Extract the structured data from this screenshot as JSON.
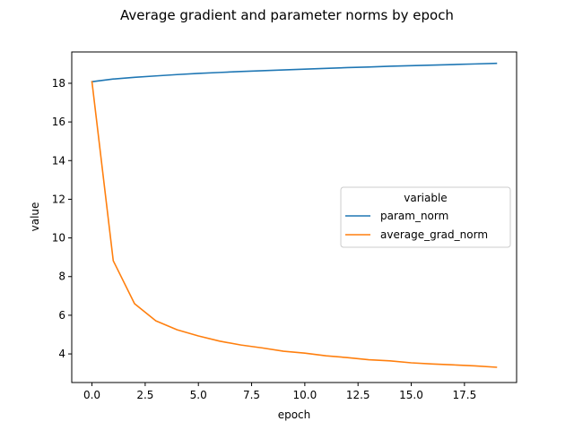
{
  "chart_data": {
    "type": "line",
    "title": "Average gradient and parameter norms by epoch",
    "xlabel": "epoch",
    "ylabel": "value",
    "xlim": [
      -0.95,
      19.95
    ],
    "ylim": [
      2.52,
      19.62
    ],
    "xticks": [
      0.0,
      2.5,
      5.0,
      7.5,
      10.0,
      12.5,
      15.0,
      17.5
    ],
    "xtick_labels": [
      "0.0",
      "2.5",
      "5.0",
      "7.5",
      "10.0",
      "12.5",
      "15.0",
      "17.5"
    ],
    "yticks": [
      4,
      6,
      8,
      10,
      12,
      14,
      16,
      18
    ],
    "ytick_labels": [
      "4",
      "6",
      "8",
      "10",
      "12",
      "14",
      "16",
      "18"
    ],
    "grid": false,
    "legend": {
      "title": "variable",
      "position": "center-right"
    },
    "x": [
      0,
      1,
      2,
      3,
      4,
      5,
      6,
      7,
      8,
      9,
      10,
      11,
      12,
      13,
      14,
      15,
      16,
      17,
      18,
      19
    ],
    "series": [
      {
        "name": "param_norm",
        "color": "#1f77b4",
        "values": [
          18.08,
          18.22,
          18.31,
          18.38,
          18.45,
          18.51,
          18.56,
          18.61,
          18.65,
          18.69,
          18.73,
          18.77,
          18.81,
          18.84,
          18.88,
          18.91,
          18.94,
          18.97,
          19.0,
          19.03
        ]
      },
      {
        "name": "average_grad_norm",
        "color": "#ff7f0e",
        "values": [
          18.08,
          8.82,
          6.6,
          5.71,
          5.25,
          4.93,
          4.66,
          4.46,
          4.31,
          4.14,
          4.04,
          3.9,
          3.81,
          3.7,
          3.64,
          3.54,
          3.48,
          3.43,
          3.38,
          3.31
        ]
      }
    ]
  }
}
